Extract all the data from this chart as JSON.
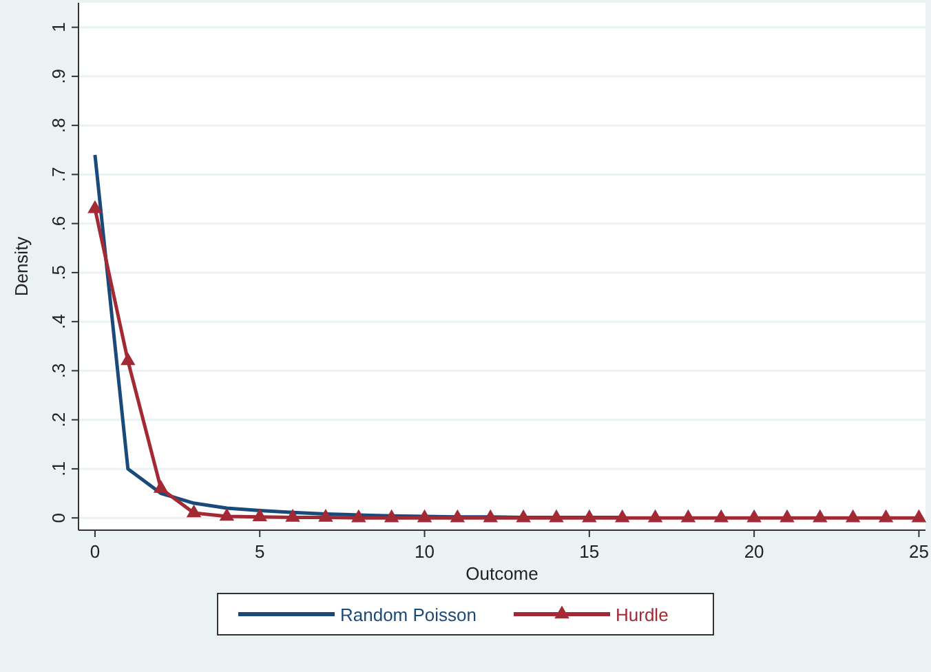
{
  "chart_data": {
    "type": "line",
    "xlabel": "Outcome",
    "ylabel": "Density",
    "x": [
      0,
      1,
      2,
      3,
      4,
      5,
      6,
      7,
      8,
      9,
      10,
      11,
      12,
      13,
      14,
      15,
      16,
      17,
      18,
      19,
      20,
      21,
      22,
      23,
      24,
      25
    ],
    "series": [
      {
        "name": "Random Poisson",
        "color": "#1a4a7a",
        "marker": "none",
        "values": [
          0.74,
          0.1,
          0.05,
          0.03,
          0.02,
          0.015,
          0.011,
          0.008,
          0.006,
          0.004,
          0.003,
          0.002,
          0.002,
          0.001,
          0.001,
          0.001,
          0.001,
          null,
          null,
          null,
          null,
          null,
          null,
          null,
          null,
          null
        ]
      },
      {
        "name": "Hurdle",
        "color": "#a32a35",
        "marker": "triangle",
        "values": [
          0.63,
          0.32,
          0.06,
          0.01,
          0.003,
          0.002,
          0.001,
          0.001,
          0,
          0,
          0,
          0,
          0,
          0,
          0,
          0,
          0,
          0,
          0,
          0,
          0,
          0,
          0,
          0,
          0,
          0
        ]
      }
    ],
    "xlim": [
      -0.5,
      25.2
    ],
    "xticks": [
      0,
      5,
      10,
      15,
      20,
      25
    ],
    "ylim": [
      -0.025,
      1.05
    ],
    "yticks": [
      0,
      {
        "value": 0.1,
        "label": ".1"
      },
      {
        "value": 0.2,
        "label": ".2"
      },
      {
        "value": 0.3,
        "label": ".3"
      },
      {
        "value": 0.4,
        "label": ".4"
      },
      {
        "value": 0.5,
        "label": ".5"
      },
      {
        "value": 0.6,
        "label": ".6"
      },
      {
        "value": 0.7,
        "label": ".7"
      },
      {
        "value": 0.8,
        "label": ".8"
      },
      {
        "value": 0.9,
        "label": ".9"
      },
      1
    ],
    "grid": "y",
    "legend": "bottom"
  }
}
